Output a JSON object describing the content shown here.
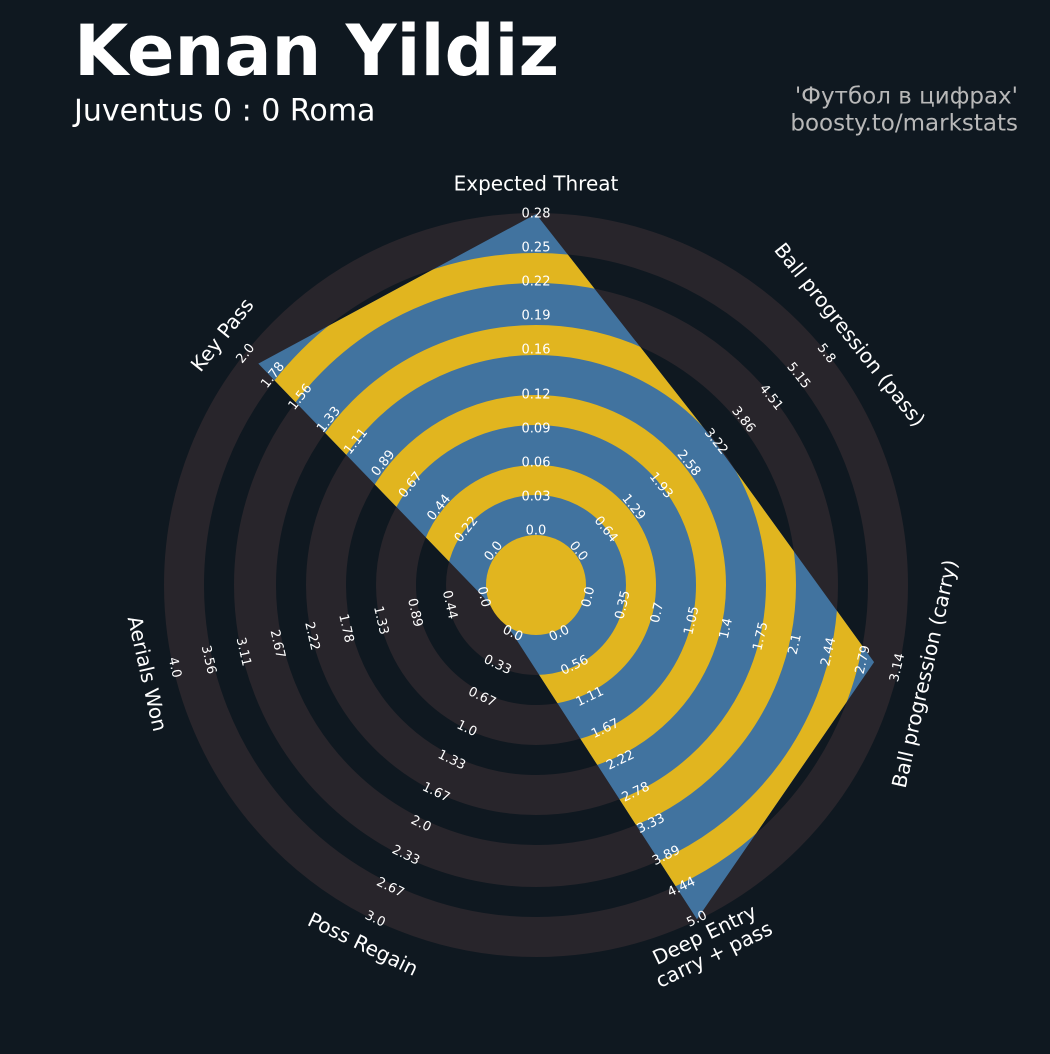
{
  "chart_data": {
    "type": "radar",
    "title": "Kenan Yildiz",
    "subtitle": "Juventus 0 : 0 Roma",
    "annotations": [
      "'Футбол в цифрах'",
      "boosty.to/markstats"
    ],
    "categories": [
      "Expected Threat",
      "Ball progression (pass)",
      "Ball progression (carry)",
      "Deep Entry\ncarry + pass",
      "Poss Regain",
      "Aerials Won",
      "Key Pass"
    ],
    "values": [
      0.28,
      3.2,
      2.9,
      5.0,
      0,
      0,
      1.9
    ],
    "lims": [
      [
        0,
        0.28
      ],
      [
        0,
        5.8
      ],
      [
        0,
        3.14
      ],
      [
        0,
        5.0
      ],
      [
        0,
        3.0
      ],
      [
        0,
        4.0
      ],
      [
        0,
        2.0
      ]
    ],
    "ticks": [
      [
        {
          "value": 0,
          "label": "0.0"
        },
        0.03,
        0.06,
        0.09,
        0.12,
        0.16,
        0.19,
        0.22,
        0.25,
        0.28
      ],
      [
        {
          "value": 0,
          "label": "0.0"
        },
        0.64,
        1.29,
        1.93,
        2.58,
        3.22,
        3.86,
        4.51,
        5.15,
        5.8
      ],
      [
        {
          "value": 0,
          "label": "0.0"
        },
        0.35,
        0.7,
        1.05,
        1.4,
        1.75,
        2.1,
        2.44,
        2.79,
        3.14
      ],
      [
        {
          "value": 0,
          "label": "0.0"
        },
        0.56,
        1.11,
        1.67,
        2.22,
        2.78,
        3.33,
        3.89,
        4.44,
        {
          "value": 5,
          "label": "5.0"
        }
      ],
      [
        {
          "value": 0,
          "label": "0.0"
        },
        0.33,
        0.67,
        {
          "value": 1,
          "label": "1.0"
        },
        1.33,
        1.67,
        {
          "value": 2,
          "label": "2.0"
        },
        2.33,
        2.67,
        {
          "value": 3,
          "label": "3.0"
        }
      ],
      [
        {
          "value": 0,
          "label": "0.0"
        },
        0.44,
        0.89,
        1.33,
        1.78,
        2.22,
        2.67,
        3.11,
        3.56,
        {
          "value": 4,
          "label": "4.0"
        }
      ],
      [
        {
          "value": 0,
          "label": "0.0"
        },
        0.22,
        0.44,
        0.67,
        0.89,
        1.11,
        1.33,
        1.56,
        1.78,
        {
          "value": 2,
          "label": "2.0"
        }
      ]
    ],
    "color": "#41739f",
    "ring_color": "#e1b51f"
  }
}
